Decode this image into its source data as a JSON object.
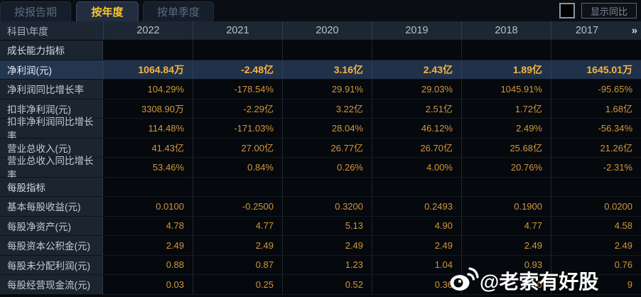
{
  "tabs": [
    {
      "label": "按报告期",
      "active": false
    },
    {
      "label": "按年度",
      "active": true
    },
    {
      "label": "按单季度",
      "active": false
    }
  ],
  "controls": {
    "show_yoy_label": "显示同比",
    "checkbox_checked": false
  },
  "table": {
    "corner_label": "科目\\年度",
    "years": [
      "2022",
      "2021",
      "2020",
      "2019",
      "2018",
      "2017"
    ],
    "more_symbol": "»",
    "rows": [
      {
        "type": "section",
        "label": "成长能力指标",
        "values": [
          "",
          "",
          "",
          "",
          "",
          ""
        ]
      },
      {
        "type": "data",
        "highlight": true,
        "label": "净利润(元)",
        "values": [
          "1064.84万",
          "-2.48亿",
          "3.16亿",
          "2.43亿",
          "1.89亿",
          "1645.01万"
        ]
      },
      {
        "type": "data",
        "label": "净利润同比增长率",
        "values": [
          "104.29%",
          "-178.54%",
          "29.91%",
          "29.03%",
          "1045.91%",
          "-95.65%"
        ]
      },
      {
        "type": "data",
        "label": "扣非净利润(元)",
        "values": [
          "3308.90万",
          "-2.29亿",
          "3.22亿",
          "2.51亿",
          "1.72亿",
          "1.68亿"
        ]
      },
      {
        "type": "data",
        "label": "扣非净利润同比增长率",
        "values": [
          "114.48%",
          "-171.03%",
          "28.04%",
          "46.12%",
          "2.49%",
          "-56.34%"
        ]
      },
      {
        "type": "data",
        "label": "营业总收入(元)",
        "values": [
          "41.43亿",
          "27.00亿",
          "26.77亿",
          "26.70亿",
          "25.68亿",
          "21.26亿"
        ]
      },
      {
        "type": "data",
        "label": "营业总收入同比增长率",
        "values": [
          "53.46%",
          "0.84%",
          "0.26%",
          "4.00%",
          "20.76%",
          "-2.31%"
        ]
      },
      {
        "type": "section",
        "label": "每股指标",
        "values": [
          "",
          "",
          "",
          "",
          "",
          ""
        ]
      },
      {
        "type": "data",
        "label": "基本每股收益(元)",
        "values": [
          "0.0100",
          "-0.2500",
          "0.3200",
          "0.2493",
          "0.1900",
          "0.0200"
        ]
      },
      {
        "type": "data",
        "label": "每股净资产(元)",
        "values": [
          "4.78",
          "4.77",
          "5.13",
          "4.90",
          "4.77",
          "4.58"
        ]
      },
      {
        "type": "data",
        "label": "每股资本公积金(元)",
        "values": [
          "2.49",
          "2.49",
          "2.49",
          "2.49",
          "2.49",
          "2.49"
        ]
      },
      {
        "type": "data",
        "label": "每股未分配利润(元)",
        "values": [
          "0.88",
          "0.87",
          "1.23",
          "1.04",
          "0.93",
          "0.76"
        ]
      },
      {
        "type": "data",
        "label": "每股经营现金流(元)",
        "values": [
          "0.03",
          "0.25",
          "0.52",
          "0.36",
          "0",
          "9"
        ]
      }
    ]
  },
  "watermark": {
    "icon": "weibo-icon",
    "text": "@老索有好股"
  },
  "colors": {
    "accent_gold": "#fdc62a",
    "value_orange": "#d2973d",
    "highlight_value": "#f7b53f",
    "highlight_row_bg": "#20314a",
    "header_bg": "#1c2733",
    "label_col_bg": "#1a2530",
    "page_bg": "#07090d"
  }
}
